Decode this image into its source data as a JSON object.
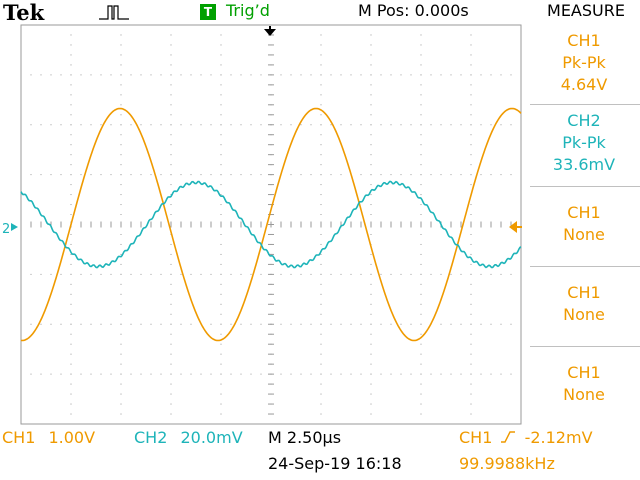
{
  "header": {
    "brand": "Tek",
    "trigger_badge": "T",
    "trigger_status": "Trig’d",
    "m_pos": "M Pos: 0.000s"
  },
  "measure": {
    "title": "MEASURE",
    "boxes": [
      {
        "source": "CH1",
        "type": "Pk-Pk",
        "value": "4.64V",
        "color": "#ef9a00"
      },
      {
        "source": "CH2",
        "type": "Pk-Pk",
        "value": "33.6mV",
        "color": "#1eb4b9"
      },
      {
        "source": "CH1",
        "type": "None",
        "color": "#ef9a00"
      },
      {
        "source": "CH1",
        "type": "None",
        "color": "#ef9a00"
      },
      {
        "source": "CH1",
        "type": "None",
        "color": "#ef9a00"
      }
    ]
  },
  "footer": {
    "ch1_label": "CH1",
    "ch1_scale": "1.00V",
    "ch2_label": "CH2",
    "ch2_scale": "20.0mV",
    "timebase": "M 2.50µs",
    "trigger_source": "CH1",
    "trigger_level": "-2.12mV",
    "date_time": "24-Sep-19 16:18",
    "frequency": "99.9988kHz"
  },
  "markers": {
    "ch2_ground": "2"
  },
  "colors": {
    "ch1": "#ef9a00",
    "ch2": "#1eb4b9",
    "trigger": "#00a000",
    "grid": "#9a9a9a"
  },
  "traces": [
    {
      "channel": "CH1",
      "frequency_khz": 99.9988,
      "pk_pk_v": 4.64,
      "volts_per_div": 1.0
    },
    {
      "channel": "CH2",
      "frequency_khz": 99.9988,
      "pk_pk_v": 0.0336,
      "volts_per_div": 0.02
    }
  ]
}
